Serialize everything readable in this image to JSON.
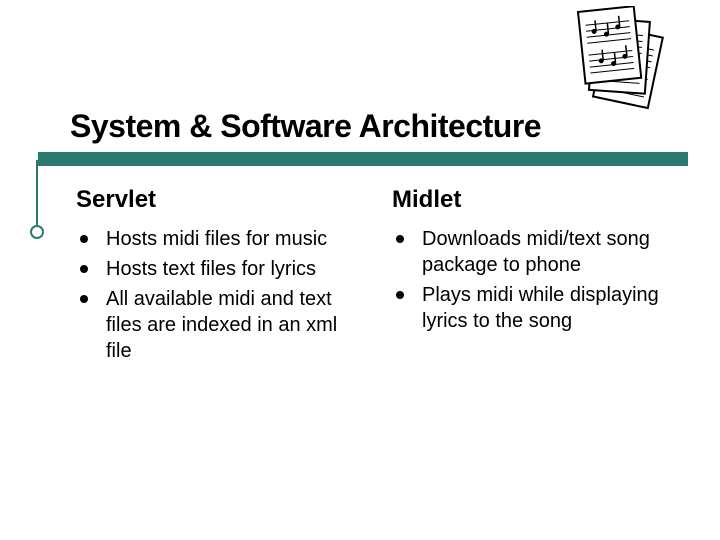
{
  "colors": {
    "accent": "#2a7a6f",
    "accent_dark": "#1e5a52",
    "background": "#ffffff",
    "text": "#000000"
  },
  "title": "System & Software Architecture",
  "columns": {
    "left": {
      "heading": "Servlet",
      "items": [
        "Hosts midi files for music",
        "Hosts text files for lyrics",
        "All available midi and text files are indexed in an xml file"
      ]
    },
    "right": {
      "heading": "Midlet",
      "items": [
        "Downloads midi/text song package to phone",
        "Plays midi while displaying lyrics to the song"
      ]
    }
  },
  "icon": {
    "name": "sheet-music-icon"
  },
  "typography": {
    "title_fontsize": 32,
    "subheading_fontsize": 24,
    "body_fontsize": 20
  }
}
